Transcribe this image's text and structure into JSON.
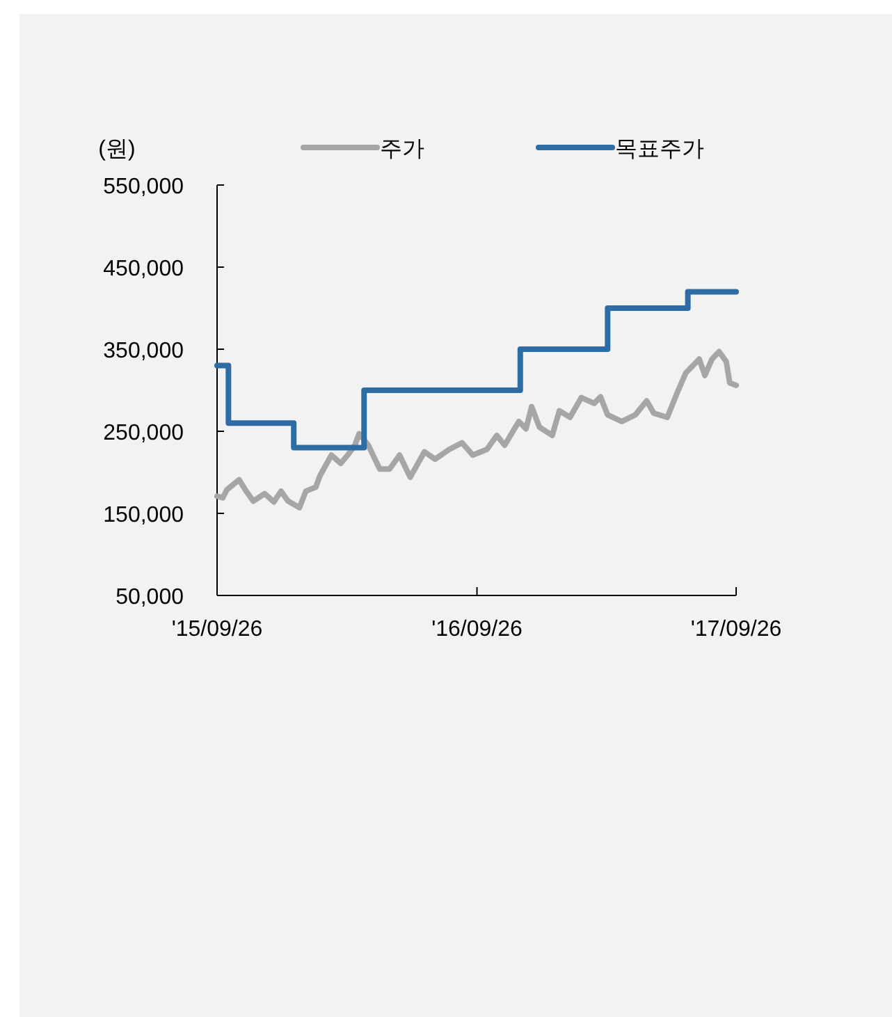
{
  "chart_data": {
    "type": "line",
    "ylabel": "(원)",
    "legend": "top",
    "grid": false,
    "marker": "none",
    "line_style": "solid",
    "xlim": [
      "2015-09-26",
      "2017-09-26"
    ],
    "xticks": [
      {
        "value": "2015-09-26",
        "label": "'15/09/26"
      },
      {
        "value": "2016-09-26",
        "label": "'16/09/26"
      },
      {
        "value": "2017-09-26",
        "label": "'17/09/26"
      }
    ],
    "ylim": [
      50000,
      550000
    ],
    "yticks": [
      {
        "value": 50000,
        "label": "50,000"
      },
      {
        "value": 150000,
        "label": "150,000"
      },
      {
        "value": 250000,
        "label": "250,000"
      },
      {
        "value": 350000,
        "label": "350,000"
      },
      {
        "value": 450000,
        "label": "450,000"
      },
      {
        "value": 550000,
        "label": "550,000"
      }
    ],
    "series": [
      {
        "name": "주가",
        "color": "#a6a6a6",
        "x": [
          "2015-09-26",
          "2015-10-04",
          "2015-10-10",
          "2015-10-27",
          "2015-11-06",
          "2015-11-16",
          "2015-12-02",
          "2015-12-15",
          "2015-12-25",
          "2016-01-04",
          "2016-01-20",
          "2016-01-29",
          "2016-02-12",
          "2016-02-18",
          "2016-03-05",
          "2016-03-18",
          "2016-03-28",
          "2016-04-07",
          "2016-04-13",
          "2016-04-26",
          "2016-05-12",
          "2016-05-26",
          "2016-06-09",
          "2016-06-24",
          "2016-07-14",
          "2016-07-29",
          "2016-08-18",
          "2016-09-05",
          "2016-09-20",
          "2016-10-10",
          "2016-10-24",
          "2016-11-04",
          "2016-11-24",
          "2016-12-04",
          "2016-12-12",
          "2016-12-23",
          "2017-01-10",
          "2017-01-20",
          "2017-02-04",
          "2017-02-20",
          "2017-03-10",
          "2017-03-19",
          "2017-03-29",
          "2017-04-18",
          "2017-05-07",
          "2017-05-23",
          "2017-06-02",
          "2017-06-21",
          "2017-07-05",
          "2017-07-17",
          "2017-08-05",
          "2017-08-13",
          "2017-08-23",
          "2017-09-02",
          "2017-09-12",
          "2017-09-17",
          "2017-09-26"
        ],
        "values": [
          171000,
          169000,
          179000,
          191000,
          177000,
          165000,
          174000,
          164000,
          177000,
          165000,
          157000,
          177000,
          182000,
          196000,
          221000,
          211000,
          221000,
          233000,
          247000,
          233000,
          204000,
          204000,
          221000,
          194000,
          225000,
          216000,
          228000,
          236000,
          221000,
          228000,
          245000,
          233000,
          262000,
          253000,
          280000,
          255000,
          245000,
          275000,
          267000,
          291000,
          284000,
          292000,
          270000,
          262000,
          270000,
          287000,
          272000,
          267000,
          297000,
          321000,
          338000,
          318000,
          338000,
          347000,
          335000,
          309000,
          306000
        ]
      },
      {
        "name": "목표주가",
        "type": "step",
        "color": "#2e6da4",
        "x": [
          "2015-09-26",
          "2015-10-12",
          "2016-01-12",
          "2016-04-20",
          "2016-11-26",
          "2017-03-29",
          "2017-07-20",
          "2017-09-26"
        ],
        "values": [
          330000,
          260000,
          230000,
          300000,
          350000,
          400000,
          420000,
          420000
        ]
      }
    ]
  }
}
